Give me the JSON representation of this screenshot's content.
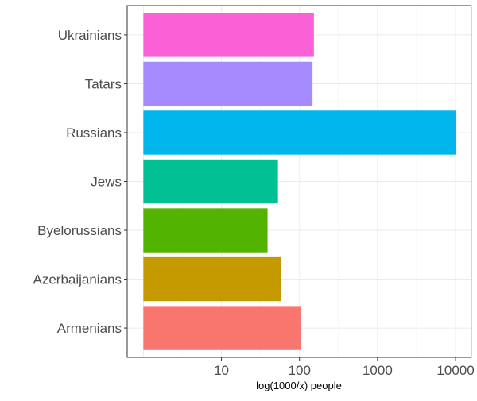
{
  "chart_data": {
    "type": "bar",
    "orientation": "horizontal",
    "title": "",
    "xlabel": "log(1000/x) people",
    "ylabel": "",
    "x_scale": "log10",
    "xlim": [
      0.62,
      15850
    ],
    "x_ticks": [
      10,
      100,
      1000,
      10000
    ],
    "x_tick_labels": [
      "10",
      "100",
      "1000",
      "10000"
    ],
    "bar_base": 1,
    "grid": true,
    "legend": "none",
    "categories": [
      "Armenians",
      "Azerbaijanians",
      "Byelorussians",
      "Jews",
      "Russians",
      "Tatars",
      "Ukrainians"
    ],
    "values": [
      105,
      58,
      39,
      53,
      10000,
      147,
      153
    ],
    "colors": [
      "#F8766D",
      "#C49A00",
      "#53B400",
      "#00C094",
      "#00B6EB",
      "#A58AFF",
      "#FB61D7"
    ]
  }
}
